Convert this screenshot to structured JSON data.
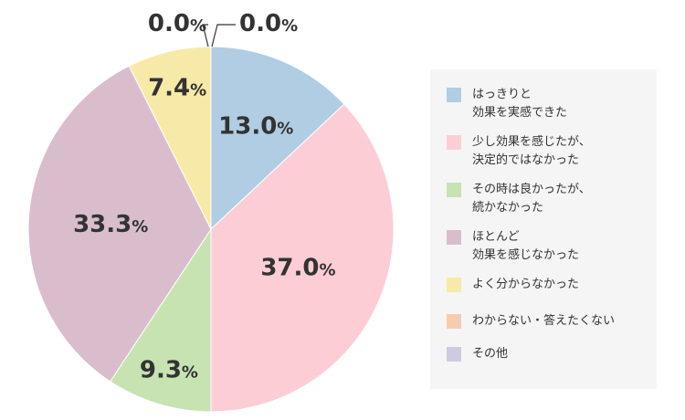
{
  "chart_data": {
    "type": "pie",
    "unit": "%",
    "slices": [
      {
        "label": "はっきりと\n効果を実感できた",
        "value": 13.0,
        "display": "13.0",
        "color": "#b0cde4"
      },
      {
        "label": "少し効果を感じたが、\n決定的ではなかった",
        "value": 37.0,
        "display": "37.0",
        "color": "#fdcdd6"
      },
      {
        "label": "その時は良かったが、\n続かなかった",
        "value": 9.3,
        "display": "9.3",
        "color": "#c7e3b2"
      },
      {
        "label": "ほとんど\n効果を感じなかった",
        "value": 33.3,
        "display": "33.3",
        "color": "#d9bdcd"
      },
      {
        "label": "よく分からなかった",
        "value": 7.4,
        "display": "7.4",
        "color": "#f7eaa8"
      },
      {
        "label": "わからない・答えたくない",
        "value": 0.0,
        "display": "0.0",
        "color": "#f6ccb0"
      },
      {
        "label": "その他",
        "value": 0.0,
        "display": "0.0",
        "color": "#cccbe0"
      }
    ],
    "start_angle": "12 o'clock, clockwise",
    "legend_position": "right"
  }
}
